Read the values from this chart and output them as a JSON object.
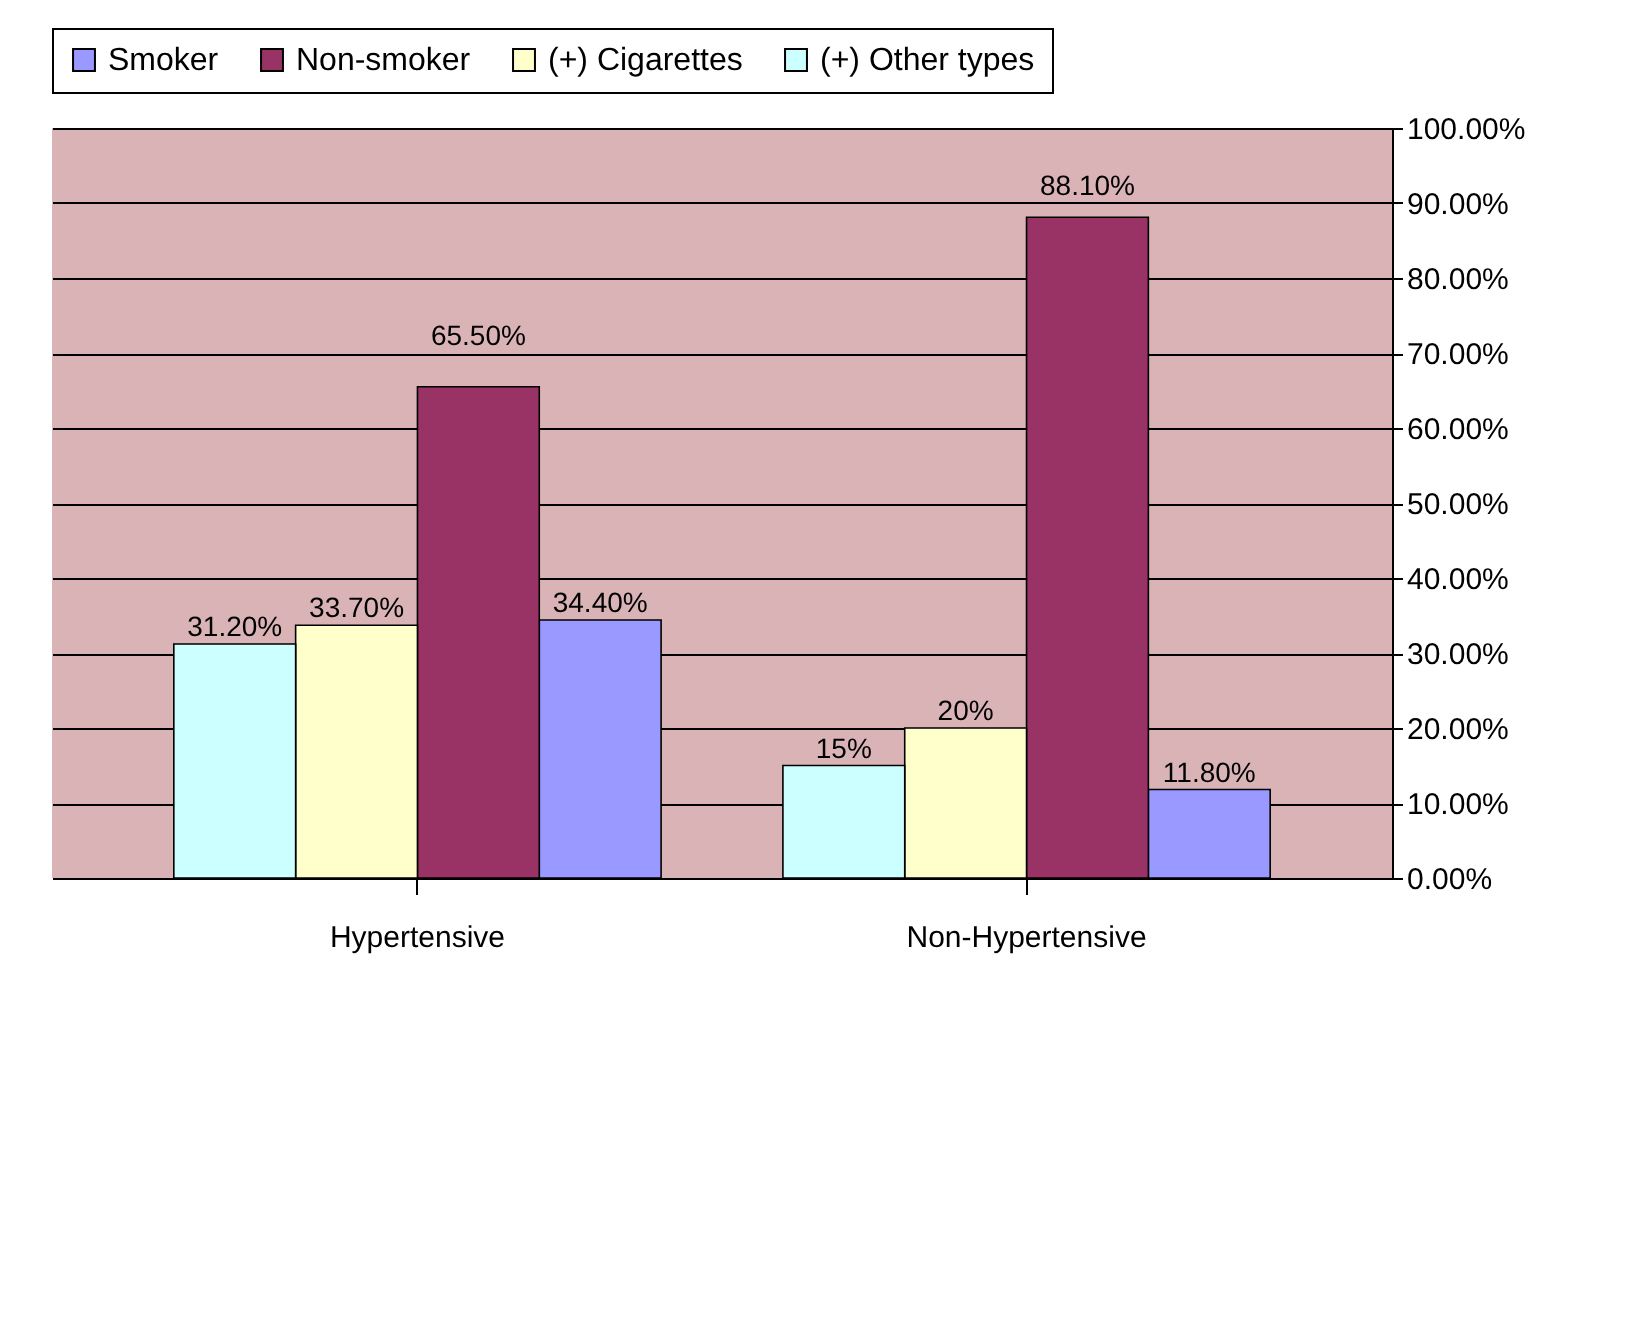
{
  "chart_data": {
    "type": "bar",
    "categories": [
      "Hypertensive",
      "Non-Hypertensive"
    ],
    "series": [
      {
        "name": "Smoker",
        "color": "#9999ff",
        "values": [
          34.4,
          11.8
        ],
        "value_labels": [
          "34.40%",
          "11.80%"
        ]
      },
      {
        "name": "Non-smoker",
        "color": "#993366",
        "values": [
          65.5,
          88.1
        ],
        "value_labels": [
          "65.50%",
          "88.10%"
        ]
      },
      {
        "name": "(+) Cigarettes",
        "color": "#ffffcc",
        "values": [
          33.7,
          20
        ],
        "value_labels": [
          "33.70%",
          "20%"
        ]
      },
      {
        "name": "(+) Other types",
        "color": "#ccffff",
        "values": [
          31.2,
          15
        ],
        "value_labels": [
          "31.20%",
          "15%"
        ]
      }
    ],
    "ylim": [
      0,
      100
    ],
    "yticks": [
      {
        "value": 0,
        "label": "0.00%"
      },
      {
        "value": 10,
        "label": "10.00%"
      },
      {
        "value": 20,
        "label": "20.00%"
      },
      {
        "value": 30,
        "label": "30.00%"
      },
      {
        "value": 40,
        "label": "40.00%"
      },
      {
        "value": 50,
        "label": "50.00%"
      },
      {
        "value": 60,
        "label": "60.00%"
      },
      {
        "value": 70,
        "label": "70.00%"
      },
      {
        "value": 80,
        "label": "80.00%"
      },
      {
        "value": 90,
        "label": "90.00%"
      },
      {
        "value": 100,
        "label": "100.00%"
      }
    ],
    "grid": "y",
    "legend": "top"
  }
}
